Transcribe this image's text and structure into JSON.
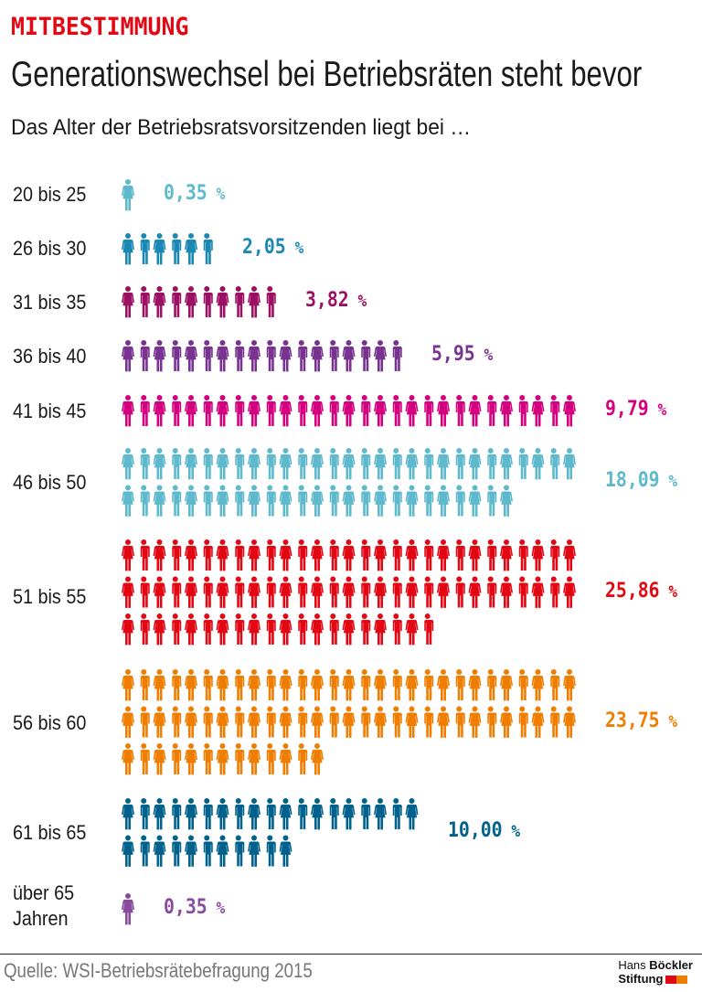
{
  "header": {
    "kicker": "MITBESTIMMUNG",
    "title": "Generationswechsel bei Betriebsräten steht bevor",
    "subtitle": "Das Alter der Betriebsratsvorsitzenden liegt bei …"
  },
  "chart_data": {
    "type": "pictogram",
    "categories": [
      "20 bis 25",
      "26 bis 30",
      "31 bis 35",
      "36 bis 40",
      "41 bis 45",
      "46 bis 50",
      "51 bis 55",
      "56 bis 60",
      "61 bis 65",
      "über 65 Jahren"
    ],
    "values": [
      0.35,
      2.05,
      3.82,
      5.95,
      9.79,
      18.09,
      25.86,
      23.75,
      10.0,
      0.35
    ],
    "value_labels": [
      "0,35",
      "2,05",
      "3,82",
      "5,95",
      "9,79",
      "18,09",
      "25,86",
      "23,75",
      "10,00",
      "0,35"
    ],
    "unit": "%",
    "icon": "person-icon",
    "icon_rows": [
      [
        1
      ],
      [
        6
      ],
      [
        10
      ],
      [
        18
      ],
      [
        29
      ],
      [
        29,
        25
      ],
      [
        29,
        29,
        20
      ],
      [
        29,
        29,
        13
      ],
      [
        19,
        11
      ],
      [
        1
      ]
    ],
    "colors": [
      "#5fb9cc",
      "#1a88b2",
      "#9b1062",
      "#77338f",
      "#d5007f",
      "#5fb9cc",
      "#e30613",
      "#ef7d00",
      "#00628c",
      "#8a4a9e"
    ]
  },
  "labels": {
    "r0": "20 bis 25",
    "r1": "26 bis 30",
    "r2": "31 bis 35",
    "r3": "36 bis 40",
    "r4": "41 bis 45",
    "r5": "46 bis 50",
    "r6": "51 bis 55",
    "r7": "56 bis 60",
    "r8": "61 bis 65",
    "r9a": "über 65",
    "r9b": "Jahren"
  },
  "footer": {
    "source": "Quelle:  WSI-Betriebsrätebefragung 2015",
    "logo_line1_a": "Hans",
    "logo_line1_b": "Böckler",
    "logo_line2": "Stiftung",
    "logo_colors": [
      "#e30613",
      "#ef7d00"
    ]
  }
}
